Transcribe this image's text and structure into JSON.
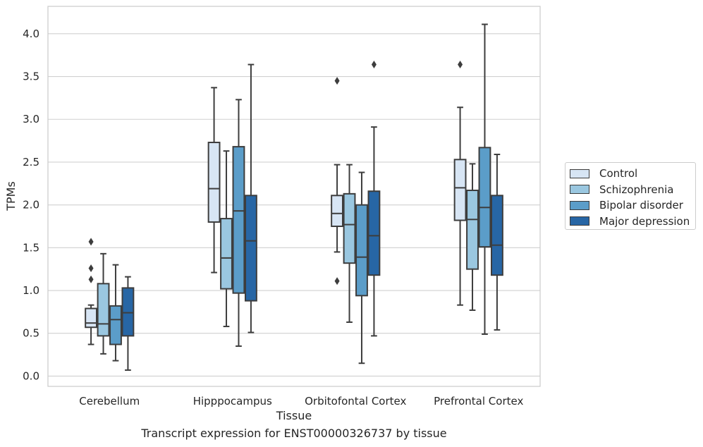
{
  "caption": "Transcript expression for ENST00000326737 by tissue",
  "chart_data": {
    "type": "box",
    "xlabel": "Tissue",
    "ylabel": "TPMs",
    "ylim": [
      -0.12,
      4.32
    ],
    "yticks": [
      "0.0",
      "0.5",
      "1.0",
      "1.5",
      "2.0",
      "2.5",
      "3.0",
      "3.5",
      "4.0"
    ],
    "grid": true,
    "legend_position": "outside-right",
    "categories": [
      "Cerebellum",
      "Hipppocampus",
      "Orbitofontal Cortex",
      "Prefrontal Cortex"
    ],
    "series": [
      {
        "name": "Control",
        "color": "#d7e5f4",
        "boxes": [
          {
            "whislo": 0.37,
            "q1": 0.57,
            "med": 0.62,
            "q3": 0.79,
            "whishi": 0.83,
            "fliers": [
              1.13,
              1.26,
              1.57
            ]
          },
          {
            "whislo": 1.21,
            "q1": 1.8,
            "med": 2.19,
            "q3": 2.73,
            "whishi": 3.37,
            "fliers": []
          },
          {
            "whislo": 1.45,
            "q1": 1.75,
            "med": 1.9,
            "q3": 2.11,
            "whishi": 2.47,
            "fliers": [
              1.11,
              3.45
            ]
          },
          {
            "whislo": 0.83,
            "q1": 1.82,
            "med": 2.2,
            "q3": 2.53,
            "whishi": 3.14,
            "fliers": [
              3.64
            ]
          }
        ]
      },
      {
        "name": "Schizophrenia",
        "color": "#9ac7e0",
        "boxes": [
          {
            "whislo": 0.26,
            "q1": 0.47,
            "med": 0.61,
            "q3": 1.08,
            "whishi": 1.43,
            "fliers": []
          },
          {
            "whislo": 0.58,
            "q1": 1.02,
            "med": 1.38,
            "q3": 1.84,
            "whishi": 2.63,
            "fliers": []
          },
          {
            "whislo": 0.63,
            "q1": 1.32,
            "med": 1.77,
            "q3": 2.13,
            "whishi": 2.47,
            "fliers": []
          },
          {
            "whislo": 0.77,
            "q1": 1.25,
            "med": 1.83,
            "q3": 2.17,
            "whishi": 2.48,
            "fliers": []
          }
        ]
      },
      {
        "name": "Bipolar disorder",
        "color": "#5b9dc9",
        "boxes": [
          {
            "whislo": 0.18,
            "q1": 0.37,
            "med": 0.66,
            "q3": 0.82,
            "whishi": 1.3,
            "fliers": []
          },
          {
            "whislo": 0.35,
            "q1": 0.97,
            "med": 1.93,
            "q3": 2.68,
            "whishi": 3.23,
            "fliers": []
          },
          {
            "whislo": 0.15,
            "q1": 0.94,
            "med": 1.39,
            "q3": 2.0,
            "whishi": 2.38,
            "fliers": []
          },
          {
            "whislo": 0.49,
            "q1": 1.51,
            "med": 1.97,
            "q3": 2.67,
            "whishi": 4.11,
            "fliers": []
          }
        ]
      },
      {
        "name": "Major depression",
        "color": "#2766a5",
        "boxes": [
          {
            "whislo": 0.07,
            "q1": 0.47,
            "med": 0.74,
            "q3": 1.03,
            "whishi": 1.16,
            "fliers": []
          },
          {
            "whislo": 0.51,
            "q1": 0.88,
            "med": 1.58,
            "q3": 2.11,
            "whishi": 3.64,
            "fliers": []
          },
          {
            "whislo": 0.47,
            "q1": 1.18,
            "med": 1.64,
            "q3": 2.16,
            "whishi": 2.91,
            "fliers": [
              3.64
            ]
          },
          {
            "whislo": 0.54,
            "q1": 1.18,
            "med": 1.53,
            "q3": 2.11,
            "whishi": 2.59,
            "fliers": []
          }
        ]
      }
    ]
  }
}
